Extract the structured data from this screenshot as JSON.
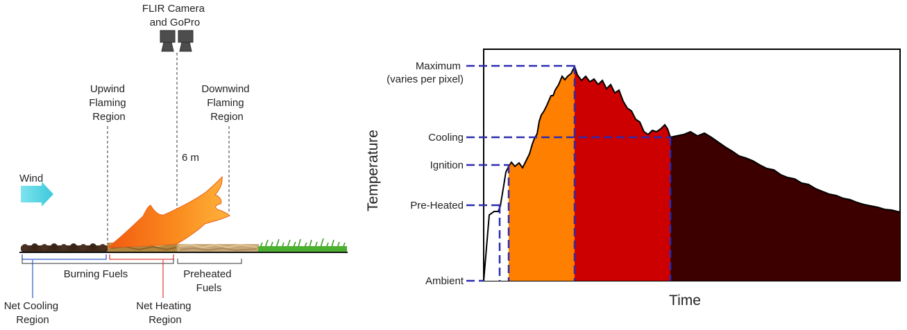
{
  "left_panel": {
    "camera_label": [
      "FLIR Camera",
      "and GoPro"
    ],
    "camera_icon": "camera-icon",
    "height_label": "6 m",
    "wind_label": "Wind",
    "wind_icon": "right-arrow-icon",
    "upwind_label": [
      "Upwind",
      "Flaming",
      "Region"
    ],
    "downwind_label": [
      "Downwind",
      "Flaming",
      "Region"
    ],
    "burning_fuels_label": "Burning Fuels",
    "preheated_fuels_label": [
      "Preheated",
      "Fuels"
    ],
    "net_cooling_label": [
      "Net Cooling",
      "Region"
    ],
    "net_heating_label": [
      "Net Heating",
      "Region"
    ]
  },
  "chart_data": {
    "type": "area",
    "xlabel": "Time",
    "ylabel": "Temperature",
    "y_levels": [
      {
        "name": "ambient",
        "label": [
          "Ambient"
        ]
      },
      {
        "name": "pre-heated",
        "label": [
          "Pre-Heated"
        ]
      },
      {
        "name": "ignition",
        "label": [
          "Ignition"
        ]
      },
      {
        "name": "cooling",
        "label": [
          "Cooling"
        ]
      },
      {
        "name": "maximum",
        "label": [
          "Maximum",
          "(varies per pixel)"
        ]
      }
    ],
    "phase_colors": {
      "preheat": "#8a8a8a",
      "ignition": "#ff7f00",
      "flaming": "#cc0000",
      "cooling": "#3d0000"
    },
    "grid": false
  }
}
